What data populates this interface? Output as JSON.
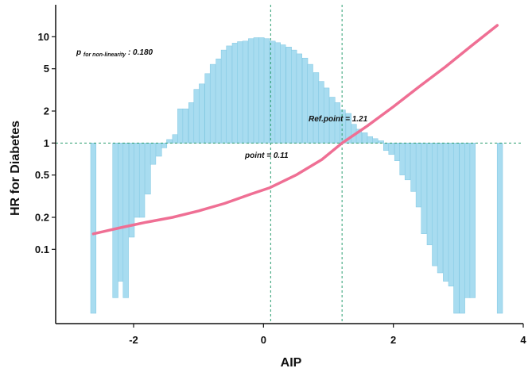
{
  "chart_data": {
    "type": "line",
    "xlabel": "AIP",
    "ylabel": "HR for Diabetes",
    "x_ticks": [
      "-2",
      "0",
      "2",
      "4"
    ],
    "y_ticks": [
      "10",
      "5",
      "2",
      "1",
      "0.5",
      "0.2",
      "0.1"
    ],
    "xlim": [
      -3.2,
      4
    ],
    "ylim_log": [
      0.02,
      20
    ],
    "y_scale": "log",
    "reference_line_y": 1,
    "vlines_x": [
      0.11,
      1.21
    ],
    "annotations": {
      "p_label": "p",
      "p_subscript": "for non-linearity",
      "p_value": " : 0.180",
      "point_label": "point = 0.11",
      "ref_point_label": "Ref.point = 1.21"
    },
    "series": [
      {
        "type": "line",
        "color": "#ef6f94",
        "x": [
          -2.62,
          -2.2,
          -1.8,
          -1.4,
          -1.0,
          -0.6,
          -0.2,
          0.1,
          0.5,
          0.9,
          1.21,
          1.6,
          2.0,
          2.4,
          2.8,
          3.2,
          3.6
        ],
        "y": [
          0.14,
          0.16,
          0.18,
          0.2,
          0.23,
          0.27,
          0.33,
          0.38,
          0.5,
          0.7,
          1.0,
          1.45,
          2.2,
          3.4,
          5.2,
          8.2,
          12.8
        ]
      }
    ],
    "histogram": {
      "color": "#a8dcf0",
      "baseline_y": 1,
      "bin_width": 0.083,
      "above": {
        "x": [
          -1.45,
          -1.36,
          -1.28,
          -1.2,
          -1.11,
          -1.03,
          -0.95,
          -0.86,
          -0.78,
          -0.69,
          -0.61,
          -0.53,
          -0.44,
          -0.36,
          -0.28,
          -0.19,
          -0.11,
          -0.03,
          0.05,
          0.14,
          0.22,
          0.3,
          0.39,
          0.47,
          0.55,
          0.64,
          0.72,
          0.81,
          0.89,
          0.97,
          1.06,
          1.14,
          1.22,
          1.31,
          1.39,
          1.47,
          1.56,
          1.64,
          1.72,
          1.81
        ],
        "y": [
          1.08,
          1.2,
          2.1,
          2.1,
          2.4,
          3.2,
          3.6,
          4.5,
          5.5,
          6.2,
          7.5,
          8.2,
          8.7,
          9.0,
          9.1,
          9.6,
          9.8,
          9.8,
          9.6,
          9.1,
          8.8,
          8.4,
          8.0,
          7.5,
          6.9,
          6.3,
          5.5,
          4.6,
          3.8,
          3.3,
          2.7,
          2.4,
          2.05,
          1.9,
          1.5,
          1.35,
          1.25,
          1.15,
          1.1,
          1.05
        ]
      },
      "below": {
        "x": [
          -2.62,
          -2.28,
          -2.2,
          -2.12,
          -2.03,
          -1.95,
          -1.87,
          -1.78,
          -1.7,
          -1.61,
          -1.53,
          1.89,
          1.97,
          2.06,
          2.14,
          2.22,
          2.31,
          2.39,
          2.47,
          2.56,
          2.64,
          2.72,
          2.81,
          2.89,
          2.97,
          3.06,
          3.14,
          3.22,
          3.64
        ],
        "y": [
          0.025,
          0.035,
          0.05,
          0.035,
          0.13,
          0.2,
          0.2,
          0.33,
          0.63,
          0.75,
          0.9,
          0.85,
          0.78,
          0.68,
          0.5,
          0.45,
          0.35,
          0.25,
          0.14,
          0.11,
          0.07,
          0.06,
          0.05,
          0.045,
          0.025,
          0.025,
          0.035,
          0.035,
          0.025
        ]
      }
    }
  }
}
